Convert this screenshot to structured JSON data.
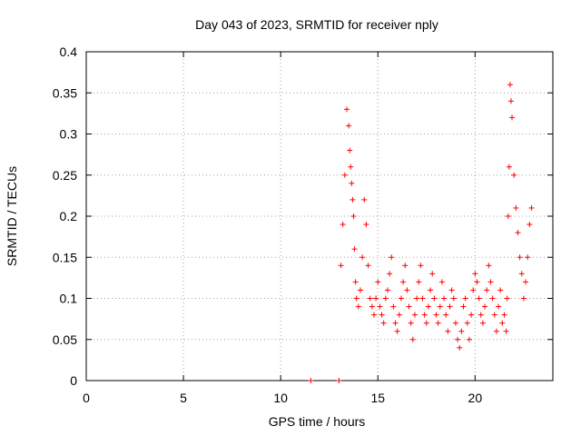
{
  "chart_data": {
    "type": "scatter",
    "title": "Day 043 of 2023, SRMTID for receiver nply",
    "xlabel": "GPS time / hours",
    "ylabel": "SRMTID / TECUs",
    "xlim": [
      0,
      24
    ],
    "ylim": [
      0,
      0.4
    ],
    "xticks": [
      0,
      5,
      10,
      15,
      20
    ],
    "xtick_labels": [
      "0",
      "5",
      "10",
      "15",
      "20"
    ],
    "yticks": [
      0,
      0.05,
      0.1,
      0.15,
      0.2,
      0.25,
      0.3,
      0.35,
      0.4
    ],
    "ytick_labels": [
      "0",
      "0.05",
      "0.1",
      "0.15",
      "0.2",
      "0.25",
      "0.3",
      "0.35",
      "0.4"
    ],
    "grid": true,
    "marker": "+",
    "color": "#ff0000",
    "series": [
      {
        "name": "SRMTID",
        "x": [
          11.55,
          13.0,
          13.1,
          13.2,
          13.3,
          13.4,
          13.5,
          13.55,
          13.6,
          13.65,
          13.7,
          13.75,
          13.8,
          13.85,
          13.9,
          14.0,
          14.1,
          14.2,
          14.3,
          14.4,
          14.5,
          14.6,
          14.7,
          14.8,
          14.9,
          15.0,
          15.1,
          15.2,
          15.3,
          15.4,
          15.5,
          15.6,
          15.7,
          15.8,
          15.9,
          16.0,
          16.1,
          16.2,
          16.3,
          16.4,
          16.5,
          16.6,
          16.7,
          16.8,
          16.9,
          17.0,
          17.1,
          17.2,
          17.3,
          17.4,
          17.5,
          17.6,
          17.7,
          17.8,
          17.9,
          18.0,
          18.1,
          18.2,
          18.3,
          18.4,
          18.5,
          18.6,
          18.7,
          18.8,
          18.9,
          19.0,
          19.1,
          19.2,
          19.3,
          19.4,
          19.5,
          19.6,
          19.7,
          19.8,
          19.9,
          20.0,
          20.1,
          20.2,
          20.3,
          20.4,
          20.5,
          20.6,
          20.7,
          20.8,
          20.9,
          21.0,
          21.1,
          21.2,
          21.3,
          21.4,
          21.5,
          21.6,
          21.65,
          21.7,
          21.75,
          21.8,
          21.85,
          21.9,
          22.0,
          22.1,
          22.2,
          22.3,
          22.4,
          22.5,
          22.6,
          22.7,
          22.8,
          22.9
        ],
        "y": [
          0.0,
          0.0,
          0.14,
          0.19,
          0.25,
          0.33,
          0.31,
          0.28,
          0.26,
          0.24,
          0.22,
          0.2,
          0.16,
          0.12,
          0.1,
          0.09,
          0.11,
          0.15,
          0.22,
          0.19,
          0.14,
          0.1,
          0.09,
          0.08,
          0.1,
          0.12,
          0.09,
          0.08,
          0.07,
          0.1,
          0.11,
          0.13,
          0.15,
          0.09,
          0.07,
          0.06,
          0.08,
          0.1,
          0.12,
          0.14,
          0.11,
          0.09,
          0.07,
          0.05,
          0.08,
          0.1,
          0.12,
          0.14,
          0.1,
          0.08,
          0.07,
          0.09,
          0.11,
          0.13,
          0.1,
          0.08,
          0.07,
          0.09,
          0.12,
          0.1,
          0.08,
          0.06,
          0.09,
          0.11,
          0.1,
          0.07,
          0.05,
          0.04,
          0.06,
          0.09,
          0.1,
          0.07,
          0.05,
          0.08,
          0.11,
          0.13,
          0.12,
          0.1,
          0.08,
          0.07,
          0.09,
          0.11,
          0.14,
          0.12,
          0.1,
          0.08,
          0.06,
          0.09,
          0.11,
          0.07,
          0.08,
          0.06,
          0.1,
          0.2,
          0.26,
          0.36,
          0.34,
          0.32,
          0.25,
          0.21,
          0.18,
          0.15,
          0.13,
          0.1,
          0.12,
          0.15,
          0.19,
          0.21
        ]
      }
    ]
  }
}
